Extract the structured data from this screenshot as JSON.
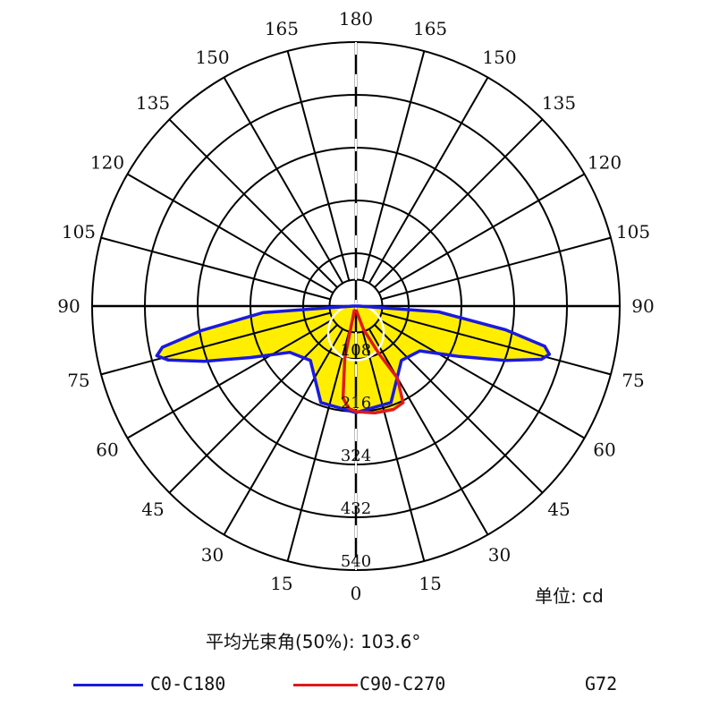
{
  "chart_data": {
    "type": "polar",
    "unit_label": "单位: cd",
    "beam_angle_label": "平均光束角(50%): 103.6°",
    "model": "G72",
    "max_radius_value": 540,
    "ring_values": [
      108,
      216,
      324,
      432,
      540
    ],
    "angle_ticks_left": [
      "0",
      "15",
      "30",
      "45",
      "60",
      "75",
      "90",
      "105",
      "120",
      "135",
      "150",
      "165",
      "180"
    ],
    "angle_ticks_right": [
      "15",
      "30",
      "45",
      "60",
      "75",
      "90",
      "105",
      "120",
      "135",
      "150",
      "165"
    ],
    "angle_tick_values_left": [
      0,
      15,
      30,
      45,
      60,
      75,
      90,
      105,
      120,
      135,
      150,
      165,
      180
    ],
    "angle_tick_values_right": [
      15,
      30,
      45,
      60,
      75,
      90,
      105,
      120,
      135,
      150,
      165
    ],
    "fill_color": "#ffee00",
    "half_value_circle_color": "#ffffff",
    "series": [
      {
        "name": "C0-C180",
        "color": "#1a1adf",
        "points": [
          {
            "angle": -90,
            "value": 6
          },
          {
            "angle": -86,
            "value": 190
          },
          {
            "angle": -81,
            "value": 320
          },
          {
            "angle": -78,
            "value": 405
          },
          {
            "angle": -76,
            "value": 420
          },
          {
            "angle": -74,
            "value": 400
          },
          {
            "angle": -70,
            "value": 330
          },
          {
            "angle": -64,
            "value": 240
          },
          {
            "angle": -55,
            "value": 165
          },
          {
            "angle": -40,
            "value": 145
          },
          {
            "angle": -20,
            "value": 210
          },
          {
            "angle": 0,
            "value": 218
          },
          {
            "angle": 20,
            "value": 210
          },
          {
            "angle": 40,
            "value": 145
          },
          {
            "angle": 55,
            "value": 160
          },
          {
            "angle": 64,
            "value": 235
          },
          {
            "angle": 70,
            "value": 325
          },
          {
            "angle": 74,
            "value": 395
          },
          {
            "angle": 76,
            "value": 408
          },
          {
            "angle": 78,
            "value": 395
          },
          {
            "angle": 81,
            "value": 310
          },
          {
            "angle": 86,
            "value": 170
          },
          {
            "angle": 90,
            "value": 6
          }
        ]
      },
      {
        "name": "C90-C270",
        "color": "#e01a1a",
        "points": [
          {
            "angle": -20,
            "value": 10
          },
          {
            "angle": -12,
            "value": 110
          },
          {
            "angle": -8,
            "value": 190
          },
          {
            "angle": -4,
            "value": 210
          },
          {
            "angle": 0,
            "value": 216
          },
          {
            "angle": 10,
            "value": 222
          },
          {
            "angle": 20,
            "value": 225
          },
          {
            "angle": 26,
            "value": 220
          },
          {
            "angle": 30,
            "value": 170
          },
          {
            "angle": 26,
            "value": 110
          },
          {
            "angle": 18,
            "value": 50
          },
          {
            "angle": 6,
            "value": 10
          },
          {
            "angle": -20,
            "value": 10
          }
        ]
      }
    ]
  }
}
